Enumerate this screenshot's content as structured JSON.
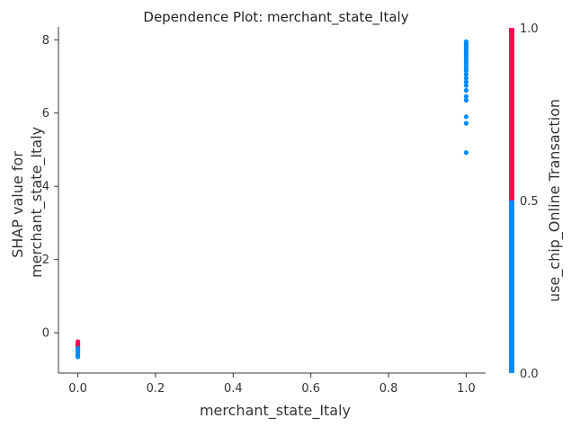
{
  "chart_data": {
    "type": "scatter",
    "title": "Dependence Plot: merchant_state_Italy",
    "xlabel": "merchant_state_Italy",
    "ylabel_lines": [
      "SHAP value for",
      "merchant_state_Italy"
    ],
    "xlim": [
      -0.05,
      1.05
    ],
    "ylim": [
      -1.1,
      8.35
    ],
    "xticks": [
      "0.0",
      "0.2",
      "0.4",
      "0.6",
      "0.8",
      "1.0"
    ],
    "yticks": [
      "0",
      "2",
      "4",
      "6",
      "8"
    ],
    "grid": false,
    "colorbar": {
      "label": "use_chip_Online Transaction",
      "ticks": [
        "0.0",
        "0.5",
        "1.0"
      ],
      "low_color": "#008bfb",
      "high_color": "#ff0052"
    },
    "series": [
      {
        "color_value": 1,
        "points": [
          [
            0,
            -0.24
          ],
          [
            0,
            -0.27
          ],
          [
            0,
            -0.3
          ],
          [
            0,
            -0.33
          ],
          [
            0,
            -0.36
          ],
          [
            0,
            -0.39
          ]
        ]
      },
      {
        "color_value": 0,
        "points": [
          [
            0,
            -0.42
          ],
          [
            0,
            -0.46
          ],
          [
            0,
            -0.5
          ],
          [
            0,
            -0.54
          ],
          [
            0,
            -0.58
          ],
          [
            0,
            -0.62
          ],
          [
            0,
            -0.66
          ],
          [
            1,
            7.95
          ],
          [
            1,
            7.9
          ],
          [
            1,
            7.85
          ],
          [
            1,
            7.8
          ],
          [
            1,
            7.75
          ],
          [
            1,
            7.7
          ],
          [
            1,
            7.64
          ],
          [
            1,
            7.58
          ],
          [
            1,
            7.52
          ],
          [
            1,
            7.45
          ],
          [
            1,
            7.38
          ],
          [
            1,
            7.3
          ],
          [
            1,
            7.22
          ],
          [
            1,
            7.15
          ],
          [
            1,
            7.05
          ],
          [
            1,
            6.95
          ],
          [
            1,
            6.85
          ],
          [
            1,
            6.75
          ],
          [
            1,
            6.62
          ],
          [
            1,
            6.45
          ],
          [
            1,
            6.35
          ],
          [
            1,
            5.9
          ],
          [
            1,
            5.72
          ],
          [
            1,
            4.92
          ]
        ]
      }
    ]
  }
}
